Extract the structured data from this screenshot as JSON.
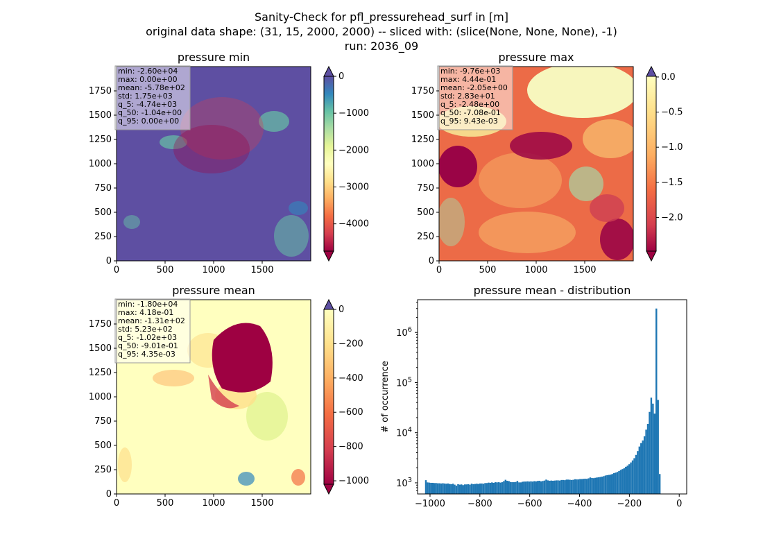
{
  "figure": {
    "title_lines": [
      "Sanity-Check for pfl_pressurehead_surf in [m]",
      "original data shape: (31, 15, 2000, 2000) -- sliced with: (slice(None, None, None), -1)",
      "run: 2036_09"
    ]
  },
  "chart_data": [
    {
      "type": "heatmap",
      "title": "pressure min",
      "xlim": [
        0,
        2000
      ],
      "ylim": [
        0,
        2000
      ],
      "x_ticks": [
        "0",
        "500",
        "1000",
        "1500"
      ],
      "y_ticks": [
        "0",
        "250",
        "500",
        "750",
        "1000",
        "1250",
        "1500",
        "1750"
      ],
      "colorbar": {
        "range": [
          -4740,
          0
        ],
        "ticks": [
          "0",
          "−1000",
          "−2000",
          "−3000",
          "−4000"
        ],
        "tick_values": [
          0,
          -1000,
          -2000,
          -3000,
          -4000
        ],
        "extend": "both",
        "colormap": "Spectral"
      },
      "stats": [
        "min: -2.60e+04",
        "max: 0.00e+00",
        "mean: -5.78e+02",
        "std: 1.75e+03",
        "q_5: -4.74e+03",
        "q_50: -1.04e+00",
        "q_95: 0.00e+00"
      ]
    },
    {
      "type": "heatmap",
      "title": "pressure max",
      "xlim": [
        0,
        2000
      ],
      "ylim": [
        0,
        2000
      ],
      "x_ticks": [
        "0",
        "500",
        "1000",
        "1500"
      ],
      "y_ticks": [
        "0",
        "250",
        "500",
        "750",
        "1000",
        "1250",
        "1500",
        "1750"
      ],
      "colorbar": {
        "range": [
          -2.48,
          0.0094
        ],
        "ticks": [
          "0.0",
          "−0.5",
          "−1.0",
          "−1.5",
          "−2.0"
        ],
        "tick_values": [
          0,
          -0.5,
          -1.0,
          -1.5,
          -2.0
        ],
        "extend": "both",
        "colormap": "Spectral"
      },
      "stats": [
        "min: -9.76e+03",
        "max: 4.44e-01",
        "mean: -2.05e+00",
        "std: 2.83e+01",
        "q_5: -2.48e+00",
        "q_50: -7.08e-01",
        "q_95: 9.43e-03"
      ]
    },
    {
      "type": "heatmap",
      "title": "pressure mean",
      "xlim": [
        0,
        2000
      ],
      "ylim": [
        0,
        2000
      ],
      "x_ticks": [
        "0",
        "500",
        "1000",
        "1500"
      ],
      "y_ticks": [
        "0",
        "250",
        "500",
        "750",
        "1000",
        "1250",
        "1500",
        "1750"
      ],
      "colorbar": {
        "range": [
          -1020,
          0.0044
        ],
        "ticks": [
          "0",
          "−200",
          "−400",
          "−600",
          "−800",
          "−1000"
        ],
        "tick_values": [
          0,
          -200,
          -400,
          -600,
          -800,
          -1000
        ],
        "extend": "both",
        "colormap": "Spectral"
      },
      "stats": [
        "min: -1.80e+04",
        "max: 4.18e-01",
        "mean: -1.31e+02",
        "std: 5.23e+02",
        "q_5: -1.02e+03",
        "q_50: -9.01e-01",
        "q_95: 4.35e-03"
      ]
    },
    {
      "type": "bar",
      "subtype": "histogram",
      "title": "pressure mean - distribution",
      "ylabel": "# of occurrence",
      "yscale": "log",
      "xlim": [
        -1050,
        30
      ],
      "ylim": [
        600,
        4500000
      ],
      "x_ticks": [
        "−1000",
        "−800",
        "−600",
        "−400",
        "−200",
        "0"
      ],
      "x_tick_values": [
        -1000,
        -800,
        -600,
        -400,
        -200,
        0
      ],
      "y_ticks": [
        "10^3",
        "10^4",
        "10^5",
        "10^6"
      ],
      "y_tick_values": [
        1000,
        10000,
        100000,
        1000000
      ],
      "bar_color": "#1f77b4",
      "bins": {
        "start": -1020,
        "width": 6.8,
        "counts": [
          1130,
          1020,
          1010,
          1000,
          1000,
          990,
          990,
          980,
          980,
          970,
          980,
          970,
          960,
          970,
          950,
          940,
          960,
          920,
          880,
          940,
          920,
          930,
          900,
          930,
          930,
          940,
          920,
          960,
          940,
          950,
          960,
          950,
          970,
          970,
          960,
          990,
          990,
          1010,
          1000,
          1020,
          1000,
          1030,
          1020,
          1030,
          1010,
          1030,
          1080,
          1150,
          1100,
          1080,
          1040,
          1030,
          1030,
          1040,
          1090,
          1020,
          1020,
          1050,
          1060,
          1060,
          1070,
          1060,
          1070,
          1060,
          1080,
          1070,
          1090,
          1100,
          1070,
          1090,
          1110,
          1160,
          1120,
          1100,
          1110,
          1100,
          1110,
          1120,
          1120,
          1110,
          1140,
          1140,
          1130,
          1160,
          1160,
          1150,
          1140,
          1150,
          1180,
          1170,
          1170,
          1190,
          1190,
          1200,
          1210,
          1200,
          1230,
          1280,
          1250,
          1240,
          1260,
          1280,
          1290,
          1310,
          1330,
          1360,
          1400,
          1420,
          1440,
          1460,
          1500,
          1560,
          1600,
          1650,
          1720,
          1810,
          1880,
          1950,
          2090,
          2200,
          2350,
          2550,
          2800,
          3100,
          3600,
          4300,
          5300,
          6200,
          7000,
          8500,
          11500,
          15000,
          26000,
          50000,
          38000,
          24000,
          3000000,
          45000,
          1500
        ]
      }
    }
  ]
}
